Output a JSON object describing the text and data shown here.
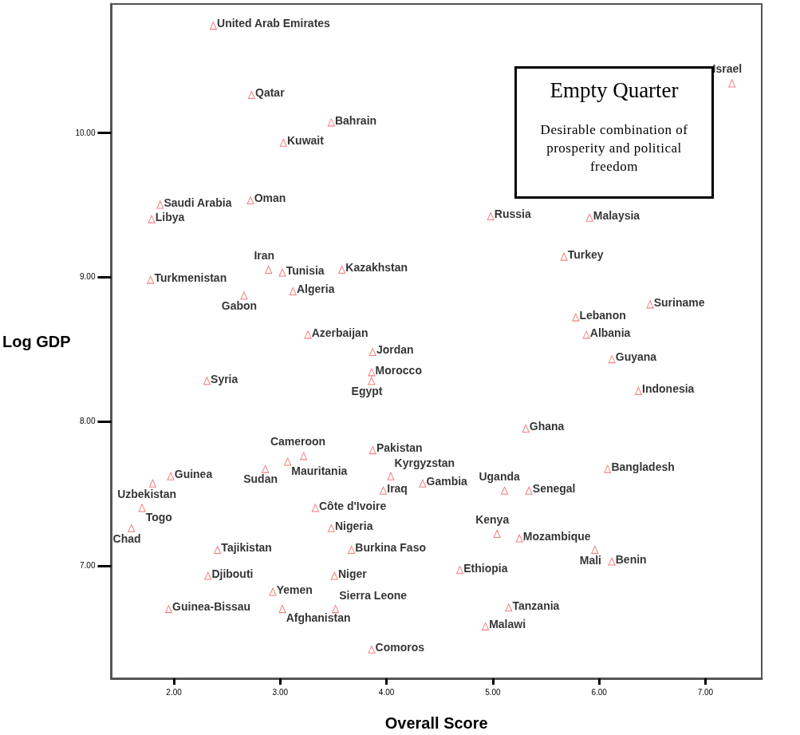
{
  "chart_data": {
    "type": "scatter",
    "xlabel": "Overall Score",
    "ylabel": "Log GDP",
    "annotations": [
      "Empty Quarter",
      "Desirable combination of prosperity and political freedom"
    ],
    "xlim": [
      1.41,
      7.53
    ],
    "xticks": [
      {
        "value": 2,
        "label": "2.00"
      },
      {
        "value": 3,
        "label": "3.00"
      },
      {
        "value": 4,
        "label": "4.00"
      },
      {
        "value": 5,
        "label": "5.00"
      },
      {
        "value": 6,
        "label": "6.00"
      },
      {
        "value": 7,
        "label": "7.00"
      }
    ],
    "ylim": [
      6.22,
      10.89
    ],
    "yticks": [
      {
        "value": 7,
        "label": "7.00"
      },
      {
        "value": 8,
        "label": "8.00"
      },
      {
        "value": 9,
        "label": "9.00"
      },
      {
        "value": 10,
        "label": "10.00"
      }
    ],
    "grid": false,
    "marker": "triangle",
    "series": [
      {
        "color": "#f25a5a",
        "x": [
          2.37,
          2.73,
          3.48,
          3.03,
          1.87,
          1.79,
          2.72,
          7.25,
          4.98,
          5.91,
          1.78,
          2.89,
          3.02,
          3.58,
          2.66,
          3.12,
          3.26,
          3.87,
          3.86,
          3.86,
          2.31,
          5.67,
          6.48,
          5.78,
          5.88,
          6.12,
          6.37,
          5.31,
          3.87,
          3.22,
          3.07,
          2.86,
          1.97,
          1.8,
          4.04,
          3.97,
          4.34,
          5.11,
          5.34,
          6.08,
          1.7,
          3.33,
          1.6,
          3.48,
          2.41,
          3.67,
          5.04,
          5.25,
          5.96,
          6.12,
          4.69,
          2.32,
          3.51,
          2.93,
          1.95,
          3.02,
          3.52,
          5.15,
          4.93,
          3.86
        ],
        "values": [
          10.74,
          10.26,
          10.07,
          9.93,
          9.5,
          9.4,
          9.53,
          10.34,
          9.42,
          9.41,
          8.98,
          9.05,
          9.03,
          9.05,
          8.87,
          8.9,
          8.6,
          8.48,
          8.34,
          8.28,
          8.28,
          9.14,
          8.81,
          8.72,
          8.6,
          8.43,
          8.21,
          7.95,
          7.8,
          7.76,
          7.72,
          7.67,
          7.62,
          7.57,
          7.62,
          7.52,
          7.57,
          7.52,
          7.52,
          7.67,
          7.4,
          7.4,
          7.26,
          7.26,
          7.11,
          7.11,
          7.22,
          7.19,
          7.11,
          7.03,
          6.97,
          6.93,
          6.93,
          6.82,
          6.7,
          6.7,
          6.7,
          6.71,
          6.58,
          6.42
        ],
        "value_labels": [
          "United Arab Emirates",
          "Qatar",
          "Bahrain",
          "Kuwait",
          "Saudi Arabia",
          "Libya",
          "Oman",
          "Israel",
          "Russia",
          "Malaysia",
          "Turkmenistan",
          "Iran",
          "Tunisia",
          "Kazakhstan",
          "Gabon",
          "Algeria",
          "Azerbaijan",
          "Jordan",
          "Morocco",
          "Egypt",
          "Syria",
          "Turkey",
          "Suriname",
          "Lebanon",
          "Albania",
          "Guyana",
          "Indonesia",
          "Ghana",
          "Pakistan",
          "Cameroon",
          "Mauritania",
          "Sudan",
          "Guinea",
          "Uzbekistan",
          "Kyrgyzstan",
          "Iraq",
          "Gambia",
          "Uganda",
          "Senegal",
          "Bangladesh",
          "Togo",
          "Côte d'Ivoire",
          "Chad",
          "Nigeria",
          "Tajikistan",
          "Burkina Faso",
          "Kenya",
          "Mozambique",
          "Mali",
          "Benin",
          "Ethiopia",
          "Djibouti",
          "Niger",
          "Yemen",
          "Guinea-Bissau",
          "Afghanistan",
          "Sierra Leone",
          "Tanzania",
          "Malawi",
          "Comoros"
        ]
      }
    ]
  }
}
